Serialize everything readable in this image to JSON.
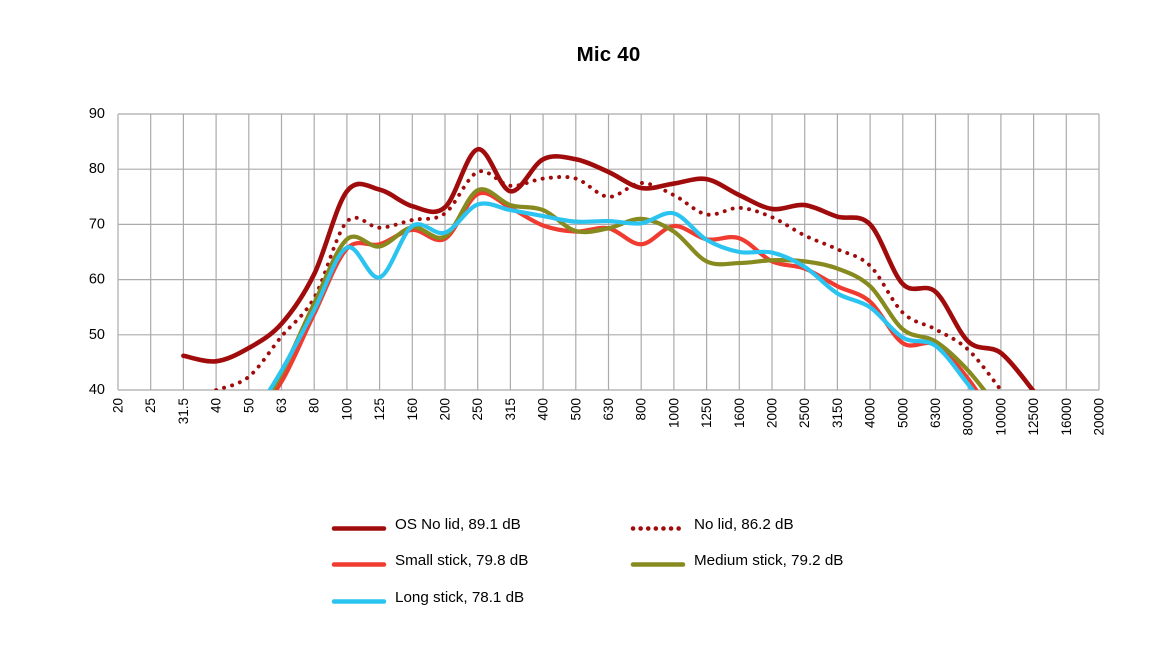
{
  "page": {
    "background": "#FFFFFF"
  },
  "chart_data": {
    "type": "line",
    "title": "Mic 40",
    "unit": "dB",
    "xlabel": "",
    "ylabel": "",
    "grid": "on",
    "grid_color": "#ABABAB",
    "legend_position": "bottom",
    "ylim": [
      40,
      90
    ],
    "y_ticks": [
      40,
      50,
      60,
      70,
      80,
      90
    ],
    "x_categories": [
      "20",
      "25",
      "31.5",
      "40",
      "50",
      "63",
      "80",
      "100",
      "125",
      "160",
      "200",
      "250",
      "315",
      "400",
      "500",
      "630",
      "800",
      "1000",
      "1250",
      "1600",
      "2000",
      "2500",
      "3150",
      "4000",
      "5000",
      "6300",
      "80000",
      "10000",
      "12500",
      "16000",
      "20000"
    ],
    "series": [
      {
        "name": "OS No lid",
        "legend_label": "OS No lid, 89.1 dB",
        "level_db": 89.1,
        "color": "#A00C0C",
        "line_style": "solid",
        "values": [
          null,
          null,
          46.2,
          45.2,
          47.6,
          52.0,
          61.0,
          76.0,
          76.3,
          73.3,
          73.1,
          83.6,
          76.0,
          81.8,
          81.8,
          79.5,
          76.6,
          77.4,
          78.2,
          75.3,
          72.8,
          73.5,
          71.4,
          70.0,
          59.2,
          57.8,
          48.8,
          46.7,
          39.8,
          null,
          null
        ]
      },
      {
        "name": "No lid",
        "legend_label": "No lid, 86.2 dB",
        "level_db": 86.2,
        "color": "#A00C0C",
        "line_style": "dotted",
        "values": [
          null,
          null,
          null,
          40.0,
          42.4,
          49.7,
          56.7,
          70.5,
          69.4,
          70.8,
          72.0,
          79.5,
          77.0,
          78.3,
          78.3,
          75.0,
          77.5,
          75.3,
          71.8,
          73.0,
          71.3,
          68.0,
          65.5,
          62.5,
          54.0,
          51.0,
          47.3,
          40.0,
          null,
          null,
          null
        ]
      },
      {
        "name": "Small stick",
        "legend_label": "Small stick, 79.8 dB",
        "level_db": 79.8,
        "color": "#EF3B30",
        "line_style": "solid",
        "values": [
          null,
          null,
          null,
          null,
          34.0,
          41.5,
          53.8,
          65.6,
          66.4,
          69.0,
          67.4,
          75.5,
          73.0,
          69.8,
          68.7,
          69.3,
          66.4,
          69.7,
          67.3,
          67.5,
          63.3,
          62.0,
          58.8,
          56.0,
          48.5,
          48.2,
          42.0,
          33.0,
          null,
          null,
          null
        ]
      },
      {
        "name": "Medium stick",
        "legend_label": "Medium stick, 79.2 dB",
        "level_db": 79.2,
        "color": "#878A1F",
        "line_style": "solid",
        "values": [
          null,
          null,
          null,
          null,
          33.0,
          43.0,
          55.7,
          67.3,
          66.0,
          69.5,
          67.8,
          76.2,
          73.5,
          72.6,
          68.8,
          69.3,
          71.0,
          68.7,
          63.3,
          63.0,
          63.5,
          63.3,
          62.0,
          58.8,
          51.0,
          48.8,
          43.5,
          36.0,
          null,
          null,
          null
        ]
      },
      {
        "name": "Long stick",
        "legend_label": "Long stick, 78.1 dB",
        "level_db": 78.1,
        "color": "#2BC4F0",
        "line_style": "solid",
        "values": [
          null,
          null,
          null,
          null,
          34.0,
          43.5,
          54.5,
          65.8,
          60.4,
          69.7,
          68.5,
          73.6,
          72.6,
          71.5,
          70.5,
          70.6,
          70.2,
          72.0,
          67.2,
          65.0,
          64.9,
          62.3,
          57.5,
          55.0,
          49.5,
          48.0,
          41.0,
          33.0,
          null,
          null,
          null
        ]
      }
    ]
  }
}
